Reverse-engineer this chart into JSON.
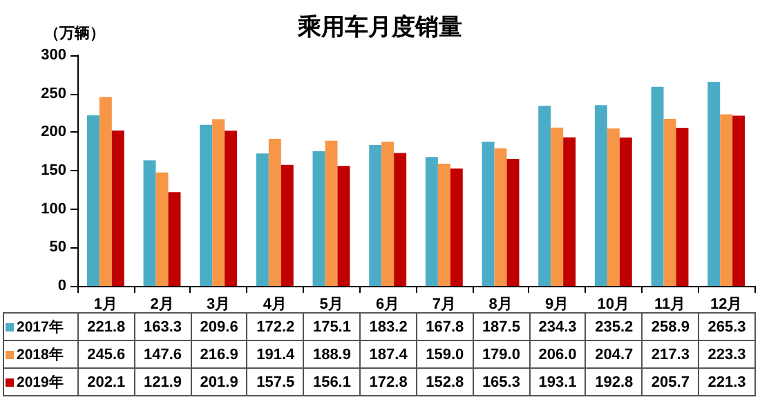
{
  "chart_data": {
    "type": "bar",
    "title": "乘用车月度销量",
    "ylabel": "（万辆）",
    "categories": [
      "1月",
      "2月",
      "3月",
      "4月",
      "5月",
      "6月",
      "7月",
      "8月",
      "9月",
      "10月",
      "11月",
      "12月"
    ],
    "series": [
      {
        "name": "2017年",
        "color": "#4bacc6",
        "values": [
          221.8,
          163.3,
          209.6,
          172.2,
          175.1,
          183.2,
          167.8,
          187.5,
          234.3,
          235.2,
          258.9,
          265.3
        ],
        "value_labels": [
          "221.8",
          "163.3",
          "209.6",
          "172.2",
          "175.1",
          "183.2",
          "167.8",
          "187.5",
          "234.3",
          "235.2",
          "258.9",
          "265.3"
        ]
      },
      {
        "name": "2018年",
        "color": "#f79646",
        "values": [
          245.6,
          147.6,
          216.9,
          191.4,
          188.9,
          187.4,
          159.0,
          179.0,
          206.0,
          204.7,
          217.3,
          223.3
        ],
        "value_labels": [
          "245.6",
          "147.6",
          "216.9",
          "191.4",
          "188.9",
          "187.4",
          "159.0",
          "179.0",
          "206.0",
          "204.7",
          "217.3",
          "223.3"
        ]
      },
      {
        "name": "2019年",
        "color": "#c00000",
        "values": [
          202.1,
          121.9,
          201.9,
          157.5,
          156.1,
          172.8,
          152.8,
          165.3,
          193.1,
          192.8,
          205.7,
          221.3
        ],
        "value_labels": [
          "202.1",
          "121.9",
          "201.9",
          "157.5",
          "156.1",
          "172.8",
          "152.8",
          "165.3",
          "193.1",
          "192.8",
          "205.7",
          "221.3"
        ]
      }
    ],
    "ylim": [
      0,
      300
    ],
    "yticks": [
      0,
      50,
      100,
      150,
      200,
      250,
      300
    ],
    "grid": false,
    "legend": "bottom"
  }
}
